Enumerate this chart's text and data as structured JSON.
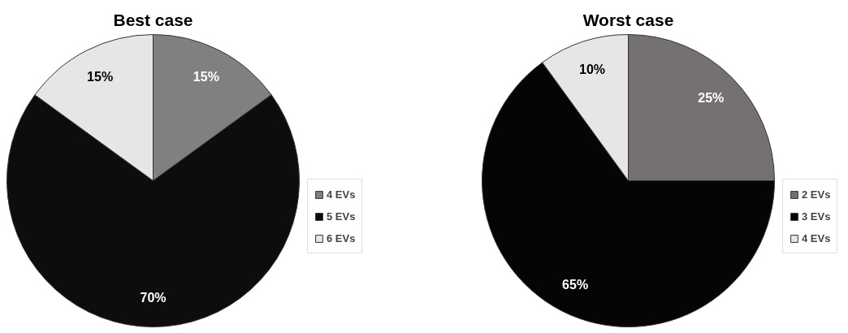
{
  "chart_data": [
    {
      "type": "pie",
      "title": "Best case",
      "categories": [
        "4 EVs",
        "5 EVs",
        "6 EVs"
      ],
      "values": [
        15,
        70,
        15
      ],
      "colors": [
        "#808080",
        "#0d0d0d",
        "#e6e6e6"
      ],
      "value_labels": [
        "15%",
        "70%",
        "15%"
      ],
      "legend": "right"
    },
    {
      "type": "pie",
      "title": "Worst case",
      "categories": [
        "2 EVs",
        "3 EVs",
        "4 EVs"
      ],
      "values": [
        25,
        65,
        10
      ],
      "colors": [
        "#767171",
        "#050505",
        "#e6e6e6"
      ],
      "value_labels": [
        "25%",
        "65%",
        "10%"
      ],
      "legend": "right"
    }
  ]
}
